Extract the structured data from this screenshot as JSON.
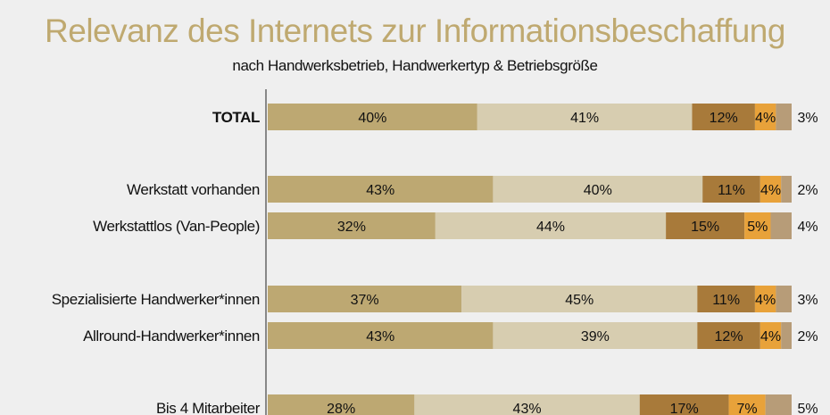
{
  "title": "Relevanz des Internets zur Informationsbeschaffung",
  "subtitle": "nach Handwerksbetrieb, Handwerkertyp & Betriebsgröße",
  "chart_data": {
    "type": "bar",
    "orientation": "horizontal",
    "stacked": true,
    "normalized": true,
    "categories": [
      "TOTAL",
      "Werkstatt vorhanden",
      "Werkstattlos (Van-People)",
      "Spezialisierte Handwerker*innen",
      "Allround-Handwerker*innen",
      "Bis 4 Mitarbeiter"
    ],
    "series": [
      {
        "values": [
          40,
          43,
          32,
          37,
          43,
          28
        ],
        "color": "#bda872"
      },
      {
        "values": [
          41,
          40,
          44,
          45,
          39,
          43
        ],
        "color": "#d7cdb0"
      },
      {
        "values": [
          12,
          11,
          15,
          11,
          12,
          17
        ],
        "color": "#a87a3a"
      },
      {
        "values": [
          4,
          4,
          5,
          4,
          4,
          7
        ],
        "color": "#e8a23a"
      },
      {
        "values": [
          3,
          2,
          4,
          3,
          2,
          5
        ],
        "color": "#b79c78"
      }
    ],
    "value_suffix": "%",
    "grid": false,
    "legend": "none"
  }
}
